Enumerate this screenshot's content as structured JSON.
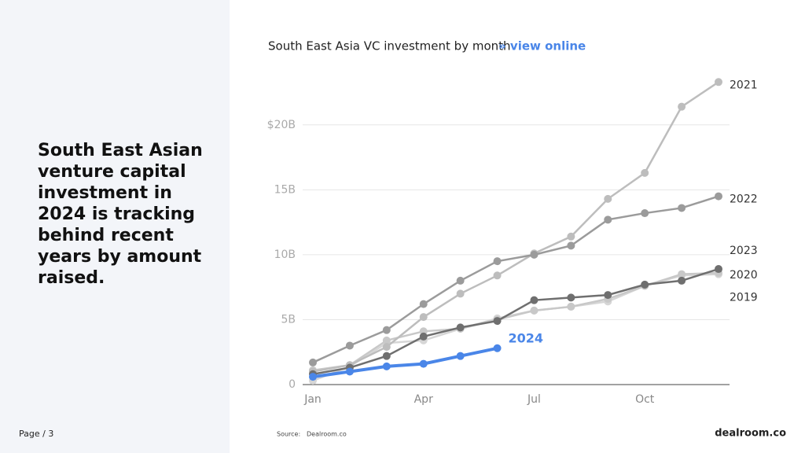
{
  "heading": "South East Asian venture capital investment in 2024 is tracking behind recent years by amount raised.",
  "footer": {
    "page": "Page / 3",
    "source_label": "Source:",
    "source": "Dealroom.co",
    "logo": "dealroom.co"
  },
  "chart_data": {
    "type": "line",
    "title": "South East Asia VC investment by month",
    "link": "» view online",
    "categories": [
      "Jan",
      null,
      null,
      "Apr",
      null,
      null,
      "Jul",
      null,
      null,
      "Oct",
      null,
      null
    ],
    "ylim": [
      0,
      23.5
    ],
    "yticks": [
      0,
      {
        "value": 5,
        "label": "5B"
      },
      {
        "value": 10,
        "label": "10B"
      },
      {
        "value": 15,
        "label": "15B"
      },
      {
        "value": 20,
        "label": "$20B"
      }
    ],
    "grid": true,
    "series": [
      {
        "name": "2019",
        "color": "#d6d6d6",
        "values": [
          0.3,
          1.4,
          3.2,
          3.4,
          4.3,
          5.1,
          5.7,
          6.0,
          6.4,
          7.6,
          8.4,
          8.5
        ]
      },
      {
        "name": "2023",
        "color": "#c8c8c8",
        "values": [
          1.1,
          1.5,
          3.4,
          4.1,
          4.3,
          5.0,
          5.7,
          6.0,
          6.6,
          7.6,
          8.5,
          8.6
        ]
      },
      {
        "name": "2021",
        "color": "#bdbdbd",
        "values": [
          1.0,
          1.5,
          2.9,
          5.2,
          7.0,
          8.4,
          10.1,
          11.4,
          14.3,
          16.3,
          21.4,
          23.3
        ]
      },
      {
        "name": "2022",
        "color": "#9b9b9b",
        "values": [
          1.7,
          3.0,
          4.2,
          6.2,
          8.0,
          9.5,
          10.0,
          10.7,
          12.7,
          13.2,
          13.6,
          14.5
        ]
      },
      {
        "name": "2020",
        "color": "#6f6f6f",
        "values": [
          0.8,
          1.3,
          2.2,
          3.7,
          4.4,
          4.9,
          6.5,
          6.7,
          6.9,
          7.7,
          8.0,
          8.9
        ]
      },
      {
        "name": "2024",
        "color": "#4a86e8",
        "values": [
          0.6,
          1.0,
          1.4,
          1.6,
          2.2,
          2.8,
          null,
          null,
          null,
          null,
          null,
          null
        ]
      }
    ]
  }
}
